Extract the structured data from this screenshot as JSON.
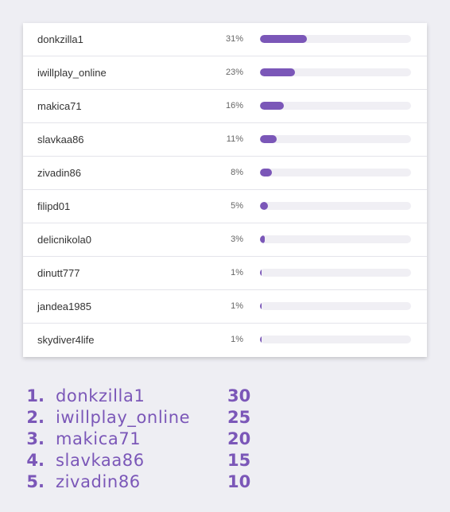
{
  "poll": {
    "rows": [
      {
        "name": "donkzilla1",
        "pct_label": "31%",
        "pct": 31
      },
      {
        "name": "iwillplay_online",
        "pct_label": "23%",
        "pct": 23
      },
      {
        "name": "makica71",
        "pct_label": "16%",
        "pct": 16
      },
      {
        "name": "slavkaa86",
        "pct_label": "11%",
        "pct": 11
      },
      {
        "name": "zivadin86",
        "pct_label": "8%",
        "pct": 8
      },
      {
        "name": "filipd01",
        "pct_label": "5%",
        "pct": 5
      },
      {
        "name": "delicnikola0",
        "pct_label": "3%",
        "pct": 3
      },
      {
        "name": "dinutt777",
        "pct_label": "1%",
        "pct": 1
      },
      {
        "name": "jandea1985",
        "pct_label": "1%",
        "pct": 1
      },
      {
        "name": "skydiver4life",
        "pct_label": "1%",
        "pct": 1
      }
    ]
  },
  "ranking": [
    {
      "rank": "1.",
      "name": "donkzilla1",
      "score": "30"
    },
    {
      "rank": "2.",
      "name": "iwillplay_online",
      "score": "25"
    },
    {
      "rank": "3.",
      "name": "makica71",
      "score": "20"
    },
    {
      "rank": "4.",
      "name": "slavkaa86",
      "score": "15"
    },
    {
      "rank": "5.",
      "name": "zivadin86",
      "score": "10"
    }
  ],
  "colors": {
    "accent": "#7b57b8",
    "track": "#f0eff4",
    "background": "#eeeef3"
  }
}
